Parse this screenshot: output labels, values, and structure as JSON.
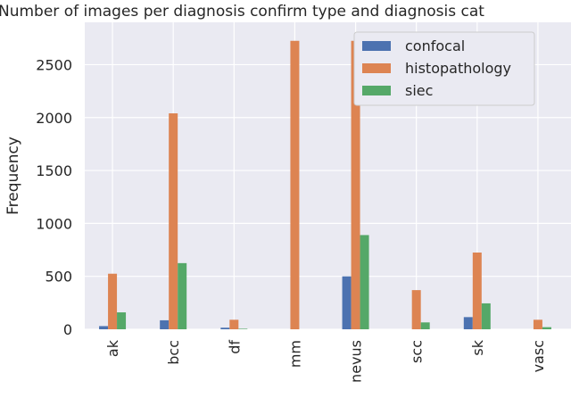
{
  "chart_data": {
    "type": "bar",
    "title": "Number of images per diagnosis confirm type and diagnosis cat",
    "xlabel": "",
    "ylabel": "Frequency",
    "ylim": [
      0,
      2900
    ],
    "yticks": [
      0,
      500,
      1000,
      1500,
      2000,
      2500
    ],
    "grid": true,
    "legend_position": "top-right",
    "categories": [
      "ak",
      "bcc",
      "df",
      "mm",
      "nevus",
      "scc",
      "sk",
      "vasc"
    ],
    "series": [
      {
        "name": "confocal",
        "color": "#4c72b0",
        "values": [
          30,
          85,
          15,
          0,
          500,
          0,
          115,
          0
        ]
      },
      {
        "name": "histopathology",
        "color": "#dd8452",
        "values": [
          525,
          2040,
          90,
          2725,
          2725,
          370,
          725,
          90
        ]
      },
      {
        "name": "siec",
        "color": "#55a868",
        "values": [
          160,
          625,
          5,
          0,
          890,
          65,
          245,
          20
        ]
      }
    ]
  }
}
